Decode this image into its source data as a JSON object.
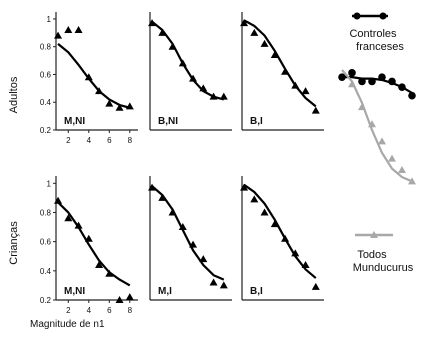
{
  "figure": {
    "row_labels": [
      "Adultos",
      "Crianças"
    ],
    "xlabel": "Magnitude de n1",
    "legend": {
      "controls_line1": "Controles",
      "controls_line2": "franceses",
      "all_line1": "Todos",
      "all_line2": "Munducurus"
    }
  },
  "chart_data": [
    {
      "type": "scatter",
      "panel_label": "M,NI",
      "row": "Adultos",
      "x_ticks": [
        2,
        4,
        6,
        8
      ],
      "y_ticks": [
        0.2,
        0.4,
        0.6,
        0.8,
        1
      ],
      "xlim": [
        0.8,
        8.8
      ],
      "ylim": [
        0.2,
        1.05
      ],
      "points": [
        [
          1,
          0.88
        ],
        [
          2,
          0.92
        ],
        [
          3,
          0.92
        ],
        [
          4,
          0.58
        ],
        [
          5,
          0.48
        ],
        [
          6,
          0.39
        ],
        [
          7,
          0.36
        ],
        [
          8,
          0.37
        ]
      ],
      "fit": [
        [
          1,
          0.82
        ],
        [
          2,
          0.76
        ],
        [
          3,
          0.67
        ],
        [
          4,
          0.57
        ],
        [
          5,
          0.48
        ],
        [
          6,
          0.42
        ],
        [
          7,
          0.38
        ],
        [
          8,
          0.36
        ]
      ],
      "marker": "triangle",
      "color": "#000000"
    },
    {
      "type": "scatter",
      "panel_label": "B,NI",
      "row": "Adultos",
      "x_ticks": [],
      "y_ticks": [],
      "xlim": [
        0.8,
        8.8
      ],
      "ylim": [
        0.2,
        1.05
      ],
      "points": [
        [
          1,
          0.97
        ],
        [
          2,
          0.9
        ],
        [
          3,
          0.8
        ],
        [
          4,
          0.68
        ],
        [
          5,
          0.57
        ],
        [
          6,
          0.5
        ],
        [
          7,
          0.44
        ],
        [
          8,
          0.44
        ]
      ],
      "fit": [
        [
          1,
          0.98
        ],
        [
          2,
          0.92
        ],
        [
          3,
          0.82
        ],
        [
          4,
          0.68
        ],
        [
          5,
          0.56
        ],
        [
          6,
          0.48
        ],
        [
          7,
          0.44
        ],
        [
          8,
          0.42
        ]
      ],
      "marker": "triangle",
      "color": "#000000"
    },
    {
      "type": "scatter",
      "panel_label": "B,I",
      "row": "Adultos",
      "x_ticks": [],
      "y_ticks": [],
      "xlim": [
        0.8,
        8.8
      ],
      "ylim": [
        0.2,
        1.05
      ],
      "points": [
        [
          1,
          0.97
        ],
        [
          2,
          0.9
        ],
        [
          3,
          0.82
        ],
        [
          4,
          0.74
        ],
        [
          5,
          0.62
        ],
        [
          6,
          0.52
        ],
        [
          7,
          0.48
        ],
        [
          8,
          0.34
        ]
      ],
      "fit": [
        [
          1,
          0.99
        ],
        [
          2,
          0.95
        ],
        [
          3,
          0.88
        ],
        [
          4,
          0.77
        ],
        [
          5,
          0.64
        ],
        [
          6,
          0.52
        ],
        [
          7,
          0.43
        ],
        [
          8,
          0.37
        ]
      ],
      "marker": "triangle",
      "color": "#000000"
    },
    {
      "type": "scatter",
      "panel_label": "M,NI",
      "row": "Crianças",
      "x_ticks": [
        2,
        4,
        6,
        8
      ],
      "y_ticks": [
        0.2,
        0.4,
        0.6,
        0.8,
        1
      ],
      "xlim": [
        0.8,
        8.8
      ],
      "ylim": [
        0.2,
        1.05
      ],
      "points": [
        [
          1,
          0.88
        ],
        [
          2,
          0.76
        ],
        [
          3,
          0.71
        ],
        [
          4,
          0.62
        ],
        [
          5,
          0.44
        ],
        [
          6,
          0.38
        ],
        [
          7,
          0.2
        ],
        [
          8,
          0.22
        ]
      ],
      "fit": [
        [
          1,
          0.87
        ],
        [
          2,
          0.8
        ],
        [
          3,
          0.7
        ],
        [
          4,
          0.58
        ],
        [
          5,
          0.47
        ],
        [
          6,
          0.39
        ],
        [
          7,
          0.34
        ],
        [
          8,
          0.3
        ]
      ],
      "marker": "triangle",
      "color": "#000000"
    },
    {
      "type": "scatter",
      "panel_label": "M,I",
      "row": "Crianças",
      "x_ticks": [],
      "y_ticks": [],
      "xlim": [
        0.8,
        8.8
      ],
      "ylim": [
        0.2,
        1.05
      ],
      "points": [
        [
          1,
          0.97
        ],
        [
          2,
          0.9
        ],
        [
          3,
          0.8
        ],
        [
          4,
          0.7
        ],
        [
          5,
          0.58
        ],
        [
          6,
          0.48
        ],
        [
          7,
          0.32
        ],
        [
          8,
          0.3
        ]
      ],
      "fit": [
        [
          1,
          0.98
        ],
        [
          2,
          0.92
        ],
        [
          3,
          0.82
        ],
        [
          4,
          0.68
        ],
        [
          5,
          0.54
        ],
        [
          6,
          0.44
        ],
        [
          7,
          0.37
        ],
        [
          8,
          0.34
        ]
      ],
      "marker": "triangle",
      "color": "#000000"
    },
    {
      "type": "scatter",
      "panel_label": "B,I",
      "row": "Crianças",
      "x_ticks": [],
      "y_ticks": [],
      "xlim": [
        0.8,
        8.8
      ],
      "ylim": [
        0.2,
        1.05
      ],
      "points": [
        [
          1,
          0.97
        ],
        [
          2,
          0.89
        ],
        [
          3,
          0.8
        ],
        [
          4,
          0.72
        ],
        [
          5,
          0.62
        ],
        [
          6,
          0.52
        ],
        [
          7,
          0.44
        ],
        [
          8,
          0.29
        ]
      ],
      "fit": [
        [
          1,
          0.99
        ],
        [
          2,
          0.94
        ],
        [
          3,
          0.86
        ],
        [
          4,
          0.75
        ],
        [
          5,
          0.62
        ],
        [
          6,
          0.5
        ],
        [
          7,
          0.41
        ],
        [
          8,
          0.35
        ]
      ],
      "marker": "triangle",
      "color": "#000000"
    },
    {
      "type": "scatter",
      "panel_label": "",
      "row": "legend",
      "x_ticks": [],
      "y_ticks": [],
      "xlim": [
        0.8,
        8.8
      ],
      "ylim": [
        0.0,
        1.05
      ],
      "series": [
        {
          "name": "Controles franceses",
          "color": "#000000",
          "marker": "circle",
          "points": [
            [
              1,
              0.93
            ],
            [
              2,
              0.96
            ],
            [
              3,
              0.9
            ],
            [
              4,
              0.9
            ],
            [
              5,
              0.93
            ],
            [
              6,
              0.9
            ],
            [
              7,
              0.86
            ],
            [
              8,
              0.8
            ]
          ],
          "fit": [
            [
              1,
              0.93
            ],
            [
              2,
              0.93
            ],
            [
              3,
              0.92
            ],
            [
              4,
              0.92
            ],
            [
              5,
              0.91
            ],
            [
              6,
              0.89
            ],
            [
              7,
              0.86
            ],
            [
              8,
              0.82
            ]
          ]
        },
        {
          "name": "Todos Munducurus",
          "color": "#a8a8a8",
          "marker": "triangle",
          "points": [
            [
              2,
              0.88
            ],
            [
              3,
              0.72
            ],
            [
              4,
              0.6
            ],
            [
              5,
              0.48
            ],
            [
              6,
              0.36
            ],
            [
              7,
              0.28
            ],
            [
              8,
              0.2
            ]
          ],
          "fit": [
            [
              1,
              0.98
            ],
            [
              2,
              0.9
            ],
            [
              3,
              0.75
            ],
            [
              4,
              0.56
            ],
            [
              5,
              0.4
            ],
            [
              6,
              0.29
            ],
            [
              7,
              0.23
            ],
            [
              8,
              0.2
            ]
          ]
        }
      ]
    }
  ]
}
